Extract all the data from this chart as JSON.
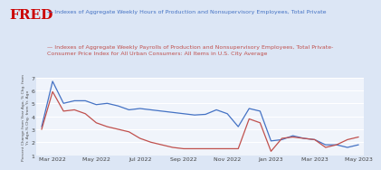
{
  "title_fred": "FRED",
  "legend_blue": "Indexes of Aggregate Weekly Hours of Production and Nonsupervisory Employees, Total Private",
  "legend_red": "Indexes of Aggregate Weekly Payrolls of Production and Nonsupervisory Employees, Total Private-\nConsumer Price Index for All Urban Consumers: All Items in U.S. City Average",
  "ylabel": "Percent Change from Year Ago, % Chg. from\nYr. Ago,% Chg. from Yr. Ago",
  "background_color": "#dce6f5",
  "plot_bg_color": "#f0f4fb",
  "grid_color": "#ffffff",
  "blue_color": "#4472c4",
  "red_color": "#c0504d",
  "blue_y": [
    3.2,
    6.7,
    5.0,
    5.2,
    5.2,
    4.9,
    5.0,
    4.8,
    4.5,
    4.6,
    4.5,
    4.4,
    4.3,
    4.2,
    4.1,
    4.15,
    4.5,
    4.2,
    3.2,
    4.6,
    4.4,
    2.1,
    2.2,
    2.5,
    2.3,
    2.2,
    1.8,
    1.8,
    1.6,
    1.8
  ],
  "red_y": [
    3.0,
    5.9,
    4.4,
    4.5,
    4.2,
    3.5,
    3.2,
    3.0,
    2.8,
    2.3,
    2.0,
    1.8,
    1.6,
    1.5,
    1.5,
    1.5,
    1.5,
    1.5,
    1.5,
    3.8,
    3.5,
    1.3,
    2.3,
    2.4,
    2.3,
    2.2,
    1.6,
    1.8,
    2.2,
    2.4
  ],
  "xtick_positions": [
    1,
    5,
    9,
    13,
    17,
    21,
    25,
    29
  ],
  "xtick_labels": [
    "Mar 2022",
    "May 2022",
    "Jul 2022",
    "Sep 2022",
    "Nov 2022",
    "Jan 2023",
    "Mar 2023",
    "May 2023"
  ],
  "ylim": [
    1,
    7
  ],
  "ytick_positions": [
    1,
    2,
    3,
    4,
    5,
    6,
    7
  ],
  "ytick_labels": [
    "1",
    "2",
    "3",
    "4",
    "5",
    "6",
    "7"
  ],
  "fred_color": "#cc0000",
  "fred_fontsize": 11,
  "legend_fontsize": 4.5,
  "tick_fontsize": 4.5,
  "ylabel_fontsize": 3.2
}
